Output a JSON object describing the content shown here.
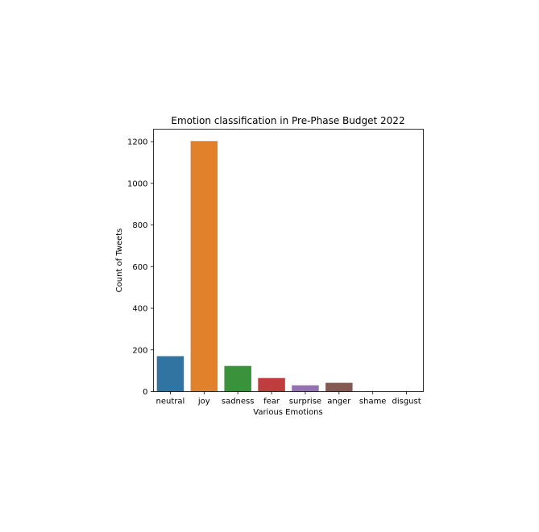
{
  "chart_data": {
    "type": "bar",
    "title": "Emotion classification in Pre-Phase Budget 2022",
    "xlabel": "Various Emotions",
    "ylabel": "Count of Tweets",
    "categories": [
      "neutral",
      "joy",
      "sadness",
      "fear",
      "surprise",
      "anger",
      "shame",
      "disgust"
    ],
    "values": [
      170,
      1203,
      123,
      65,
      30,
      42,
      0,
      0
    ],
    "colors": [
      "#3274a1",
      "#e1812c",
      "#3a923a",
      "#c03d3e",
      "#9372b2",
      "#845b53",
      "#d684bd",
      "#7f7f7f"
    ],
    "ylim": [
      0,
      1260
    ],
    "yticks": [
      0,
      200,
      400,
      600,
      800,
      1000,
      1200
    ],
    "grid": false,
    "legend": "none"
  }
}
